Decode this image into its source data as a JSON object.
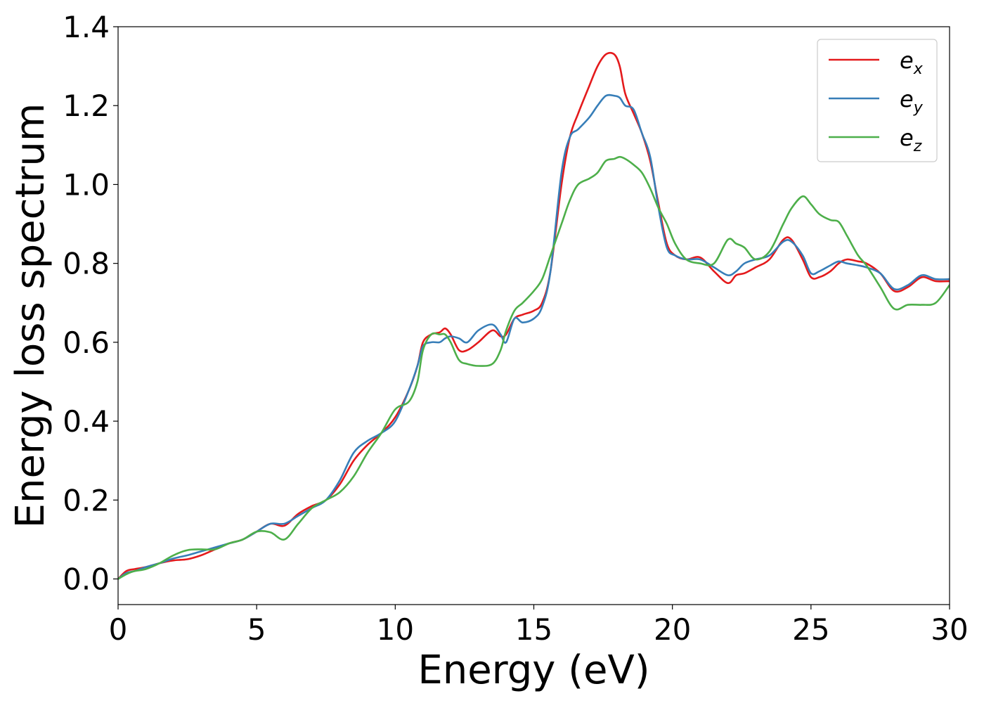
{
  "chart_data": {
    "type": "line",
    "title": "",
    "xlabel": "Energy (eV)",
    "ylabel": "Energy loss spectrum",
    "xlim": [
      0,
      30
    ],
    "ylim": [
      -0.065,
      1.4
    ],
    "xticks": [
      0,
      5,
      10,
      15,
      20,
      25,
      30
    ],
    "xtick_labels": [
      "0",
      "5",
      "10",
      "15",
      "20",
      "25",
      "30"
    ],
    "yticks": [
      0.0,
      0.2,
      0.4,
      0.6,
      0.8,
      1.0,
      1.2,
      1.4
    ],
    "ytick_labels": [
      "0.0",
      "0.2",
      "0.4",
      "0.6",
      "0.8",
      "1.0",
      "1.2",
      "1.4"
    ],
    "grid": false,
    "legend": "top-right",
    "series": [
      {
        "name": "e",
        "subscript": "x",
        "color": "#e41a1c",
        "x": [
          0,
          0.3,
          0.6,
          1,
          1.5,
          2,
          2.5,
          3,
          3.5,
          4,
          4.5,
          5,
          5.5,
          6,
          6.5,
          7,
          7.5,
          8,
          8.5,
          9,
          9.5,
          10,
          10.5,
          10.8,
          11,
          11.3,
          11.6,
          11.8,
          12,
          12.3,
          12.6,
          13,
          13.5,
          13.8,
          14,
          14.3,
          14.6,
          15,
          15.3,
          15.6,
          16,
          16.3,
          16.6,
          17,
          17.3,
          17.6,
          17.9,
          18.1,
          18.3,
          18.6,
          18.9,
          19.2,
          19.5,
          19.8,
          20.1,
          20.5,
          21,
          21.5,
          22,
          22.3,
          22.6,
          23,
          23.5,
          24,
          24.3,
          24.7,
          25,
          25.3,
          25.7,
          26,
          26.3,
          26.7,
          27,
          27.5,
          28,
          28.5,
          29,
          29.5,
          30
        ],
        "y": [
          0.0,
          0.02,
          0.025,
          0.03,
          0.04,
          0.047,
          0.05,
          0.06,
          0.075,
          0.09,
          0.1,
          0.12,
          0.14,
          0.135,
          0.165,
          0.185,
          0.2,
          0.24,
          0.3,
          0.34,
          0.37,
          0.41,
          0.48,
          0.54,
          0.6,
          0.62,
          0.625,
          0.635,
          0.62,
          0.58,
          0.58,
          0.6,
          0.63,
          0.615,
          0.62,
          0.66,
          0.67,
          0.68,
          0.7,
          0.78,
          1.0,
          1.12,
          1.18,
          1.25,
          1.3,
          1.33,
          1.33,
          1.3,
          1.23,
          1.18,
          1.13,
          1.06,
          0.95,
          0.85,
          0.82,
          0.81,
          0.815,
          0.78,
          0.75,
          0.77,
          0.775,
          0.79,
          0.81,
          0.86,
          0.86,
          0.81,
          0.765,
          0.765,
          0.78,
          0.8,
          0.81,
          0.805,
          0.8,
          0.775,
          0.73,
          0.74,
          0.765,
          0.755,
          0.755
        ]
      },
      {
        "name": "e",
        "subscript": "y",
        "color": "#377eb8",
        "x": [
          0,
          0.3,
          0.6,
          1,
          1.5,
          2,
          2.5,
          3,
          3.5,
          4,
          4.5,
          5,
          5.5,
          6,
          6.5,
          7,
          7.5,
          8,
          8.5,
          9,
          9.5,
          10,
          10.5,
          10.8,
          11,
          11.3,
          11.6,
          11.8,
          12,
          12.3,
          12.6,
          13,
          13.5,
          13.8,
          14,
          14.3,
          14.6,
          15,
          15.3,
          15.6,
          16,
          16.3,
          16.6,
          17,
          17.3,
          17.6,
          17.9,
          18.1,
          18.3,
          18.6,
          18.9,
          19.2,
          19.5,
          19.8,
          20.1,
          20.5,
          21,
          21.5,
          22,
          22.3,
          22.6,
          23,
          23.5,
          24,
          24.3,
          24.7,
          25,
          25.3,
          25.7,
          26,
          26.3,
          26.7,
          27,
          27.5,
          28,
          28.5,
          29,
          29.5,
          30
        ],
        "y": [
          0.0,
          0.015,
          0.02,
          0.03,
          0.04,
          0.052,
          0.06,
          0.07,
          0.08,
          0.09,
          0.1,
          0.12,
          0.14,
          0.14,
          0.16,
          0.18,
          0.2,
          0.25,
          0.32,
          0.35,
          0.37,
          0.4,
          0.48,
          0.54,
          0.59,
          0.6,
          0.6,
          0.61,
          0.615,
          0.61,
          0.6,
          0.63,
          0.645,
          0.62,
          0.6,
          0.66,
          0.65,
          0.66,
          0.69,
          0.78,
          1.03,
          1.12,
          1.14,
          1.17,
          1.2,
          1.225,
          1.225,
          1.22,
          1.2,
          1.19,
          1.13,
          1.07,
          0.94,
          0.84,
          0.82,
          0.81,
          0.81,
          0.79,
          0.77,
          0.78,
          0.8,
          0.81,
          0.82,
          0.855,
          0.855,
          0.82,
          0.775,
          0.78,
          0.795,
          0.805,
          0.8,
          0.795,
          0.79,
          0.775,
          0.735,
          0.745,
          0.77,
          0.76,
          0.76
        ]
      },
      {
        "name": "e",
        "subscript": "z",
        "color": "#4daf4a",
        "x": [
          0,
          0.3,
          0.6,
          1,
          1.5,
          2,
          2.5,
          3,
          3.5,
          4,
          4.5,
          5,
          5.5,
          6,
          6.5,
          7,
          7.5,
          8,
          8.5,
          9,
          9.5,
          10,
          10.5,
          10.8,
          11,
          11.3,
          11.6,
          11.8,
          12,
          12.3,
          12.6,
          13,
          13.5,
          13.8,
          14,
          14.3,
          14.6,
          15,
          15.3,
          15.6,
          16,
          16.3,
          16.6,
          17,
          17.3,
          17.6,
          17.9,
          18.1,
          18.3,
          18.6,
          18.9,
          19.2,
          19.5,
          19.8,
          20.1,
          20.5,
          21,
          21.5,
          22,
          22.3,
          22.6,
          23,
          23.5,
          24,
          24.3,
          24.7,
          25,
          25.3,
          25.7,
          26,
          26.3,
          26.7,
          27,
          27.5,
          28,
          28.5,
          29,
          29.5,
          30
        ],
        "y": [
          0.0,
          0.012,
          0.02,
          0.025,
          0.04,
          0.06,
          0.073,
          0.075,
          0.075,
          0.09,
          0.1,
          0.12,
          0.118,
          0.1,
          0.14,
          0.18,
          0.2,
          0.22,
          0.26,
          0.32,
          0.37,
          0.43,
          0.45,
          0.5,
          0.58,
          0.62,
          0.62,
          0.62,
          0.6,
          0.555,
          0.545,
          0.54,
          0.545,
          0.58,
          0.63,
          0.68,
          0.7,
          0.73,
          0.76,
          0.82,
          0.9,
          0.96,
          1.0,
          1.015,
          1.03,
          1.06,
          1.065,
          1.07,
          1.065,
          1.05,
          1.03,
          0.99,
          0.94,
          0.9,
          0.85,
          0.81,
          0.8,
          0.8,
          0.86,
          0.85,
          0.84,
          0.81,
          0.83,
          0.9,
          0.94,
          0.97,
          0.95,
          0.925,
          0.91,
          0.905,
          0.87,
          0.82,
          0.795,
          0.74,
          0.685,
          0.695,
          0.695,
          0.7,
          0.745
        ]
      }
    ]
  }
}
